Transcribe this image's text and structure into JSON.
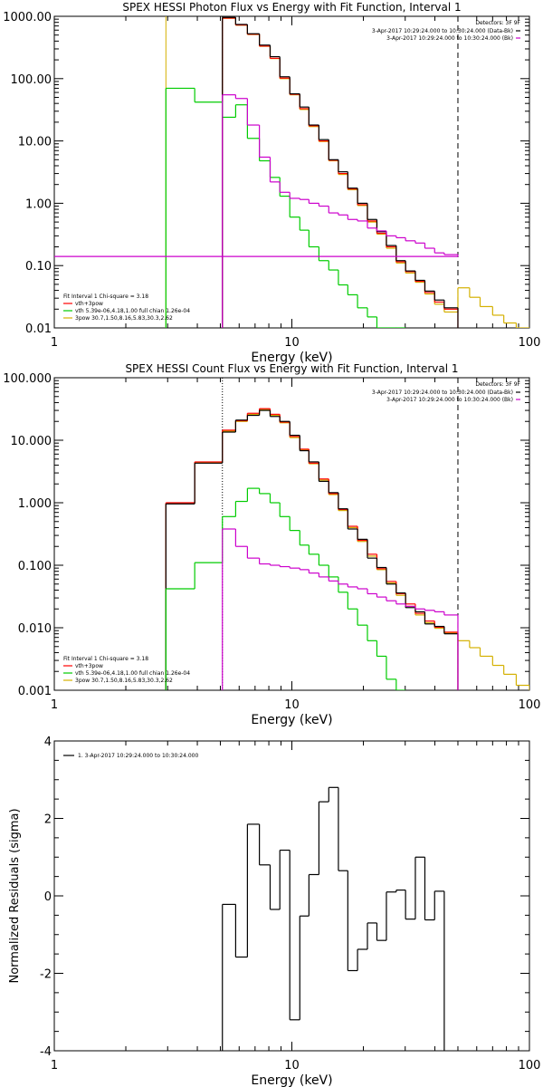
{
  "chart_data": [
    {
      "type": "line",
      "title": "SPEX HESSI Photon Flux vs Energy with Fit Function, Interval 1",
      "xlabel": "Energy (keV)",
      "ylabel": "",
      "x_scale": "log",
      "y_scale": "log",
      "xlim": [
        1,
        100
      ],
      "ylim": [
        0.01,
        1000
      ],
      "x_ticks": [
        {
          "value": 1,
          "label": "1"
        },
        {
          "value": 10,
          "label": "10"
        },
        {
          "value": 100,
          "label": "100"
        }
      ],
      "y_ticks": [
        {
          "value": 0.01,
          "label": "0.01"
        },
        {
          "value": 0.1,
          "label": "0.10"
        },
        {
          "value": 1,
          "label": "1.00"
        },
        {
          "value": 10,
          "label": "10.00"
        },
        {
          "value": 100,
          "label": "100.00"
        },
        {
          "value": 1000,
          "label": "1000.00"
        }
      ],
      "vlines": [
        {
          "x": 2.95,
          "color": "#d4b000",
          "style": "solid"
        },
        {
          "x": 5.1,
          "color": "#000000",
          "style": "dotted"
        },
        {
          "x": 50,
          "color": "#000000",
          "style": "dashed"
        }
      ],
      "legend_topright": {
        "detectors": "Detectors: 3F 9F",
        "entries": [
          {
            "text": "3-Apr-2017 10:29:24.000 to 10:30:24.000 (Data-Bk)",
            "color": "#000000"
          },
          {
            "text": "3-Apr-2017 10:29:24.000 to 10:30:24.000 (Bk)",
            "color": "#cc00cc"
          }
        ]
      },
      "legend_bottomleft": {
        "header": "Fit Interval 1   Chi-square = 3.18",
        "entries": [
          {
            "text": "vth+3pow",
            "color": "#ff0000"
          },
          {
            "text": "vth 5.39e-06,4.18,1.00  full chian 1.26e-04",
            "color": "#00cc00"
          },
          {
            "text": "3pow 30.7,1.50,8.16,5.83,30.3,2.62",
            "color": "#d4b000"
          }
        ]
      },
      "series": [
        {
          "color": "#d4b000",
          "edges": [
            2.95,
            3.9,
            5.1,
            5.8,
            6.5,
            7.3,
            8.1,
            8.9,
            9.8,
            10.8,
            11.8,
            13,
            14.3,
            15.7,
            17.2,
            18.9,
            20.8,
            22.8,
            25,
            27.5,
            30.1,
            33.1,
            36.3,
            39.9,
            43.8,
            50,
            56,
            62,
            70,
            78,
            88,
            100
          ],
          "values": [
            null,
            null,
            930,
            720,
            510,
            330,
            210,
            100,
            55,
            32,
            17,
            9.8,
            4.8,
            2.9,
            1.65,
            0.92,
            0.5,
            0.32,
            0.19,
            0.11,
            0.076,
            0.054,
            0.035,
            0.024,
            0.018,
            0.044,
            0.031,
            0.022,
            0.016,
            0.012,
            0.01
          ]
        },
        {
          "color": "#ff0000",
          "edges": [
            5.1,
            5.8,
            6.5,
            7.3,
            8.1,
            8.9,
            9.8,
            10.8,
            11.8,
            13,
            14.3,
            15.7,
            17.2,
            18.9,
            20.8,
            22.8,
            25,
            27.5,
            30.1,
            33.1,
            36.3,
            39.9,
            43.8,
            50
          ],
          "values": [
            935,
            725,
            515,
            333,
            212,
            102,
            56,
            33,
            17.5,
            10,
            4.9,
            3,
            1.7,
            0.95,
            0.52,
            0.33,
            0.2,
            0.115,
            0.08,
            0.056,
            0.037,
            0.026,
            0.02
          ]
        },
        {
          "color": "#000000",
          "edges": [
            5.1,
            5.8,
            6.5,
            7.3,
            8.1,
            8.9,
            9.8,
            10.8,
            11.8,
            13,
            14.3,
            15.7,
            17.2,
            18.9,
            20.8,
            22.8,
            25,
            27.5,
            30.1,
            33.1,
            36.3,
            39.9,
            43.8,
            50
          ],
          "values": [
            960,
            740,
            525,
            345,
            225,
            107,
            57,
            35,
            18,
            10.5,
            5,
            3.2,
            1.75,
            1,
            0.55,
            0.35,
            0.21,
            0.12,
            0.082,
            0.058,
            0.039,
            0.028,
            0.021
          ]
        },
        {
          "color": "#00cc00",
          "edges": [
            2.95,
            3.9,
            5.1,
            5.8,
            6.5,
            7.3,
            8.1,
            8.9,
            9.8,
            10.8,
            11.8,
            13,
            14.3,
            15.7,
            17.2,
            18.9,
            20.8,
            22.8,
            25,
            27.5,
            30.1
          ],
          "values": [
            70,
            42,
            24,
            38,
            11,
            4.8,
            2.6,
            1.3,
            0.6,
            0.37,
            0.2,
            0.12,
            0.085,
            0.049,
            0.034,
            0.021,
            0.015,
            0.01,
            0.01,
            0.01
          ]
        },
        {
          "color": "#cc00cc",
          "edges": [
            5.1,
            5.8,
            6.5,
            7.3,
            8.1,
            8.9,
            9.8,
            10.8,
            11.8,
            13,
            14.3,
            15.7,
            17.2,
            18.9,
            20.8,
            22.8,
            25,
            27.5,
            30.1,
            33.1,
            36.3,
            39.9,
            43.8,
            50
          ],
          "values": [
            55,
            48,
            18,
            5.5,
            2.2,
            1.5,
            1.2,
            1.15,
            1.0,
            0.9,
            0.7,
            0.65,
            0.55,
            0.52,
            0.4,
            0.36,
            0.3,
            0.28,
            0.25,
            0.23,
            0.19,
            0.16,
            0.15,
            0.14
          ]
        }
      ]
    },
    {
      "type": "line",
      "title": "SPEX HESSI Count Flux vs Energy with Fit Function, Interval 1",
      "xlabel": "Energy (keV)",
      "ylabel": "",
      "x_scale": "log",
      "y_scale": "log",
      "xlim": [
        1,
        100
      ],
      "ylim": [
        0.001,
        100
      ],
      "x_ticks": [
        {
          "value": 1,
          "label": "1"
        },
        {
          "value": 10,
          "label": "10"
        },
        {
          "value": 100,
          "label": "100"
        }
      ],
      "y_ticks": [
        {
          "value": 0.001,
          "label": "0.001"
        },
        {
          "value": 0.01,
          "label": "0.010"
        },
        {
          "value": 0.1,
          "label": "0.100"
        },
        {
          "value": 1,
          "label": "1.000"
        },
        {
          "value": 10,
          "label": "10.000"
        },
        {
          "value": 100,
          "label": "100.000"
        }
      ],
      "vlines": [
        {
          "x": 5.1,
          "color": "#000000",
          "style": "dotted"
        },
        {
          "x": 50,
          "color": "#000000",
          "style": "dashed"
        }
      ],
      "legend_topright": {
        "detectors": "Detectors: 3F 9F",
        "entries": [
          {
            "text": "3-Apr-2017 10:29:24.000 to 10:30:24.000 (Data-Bk)",
            "color": "#000000"
          },
          {
            "text": "3-Apr-2017 10:29:24.000 to 10:30:24.000 (Bk)",
            "color": "#cc00cc"
          }
        ]
      },
      "legend_bottomleft": {
        "header": "Fit Interval 1   Chi-square = 3.18",
        "entries": [
          {
            "text": "vth+3pow",
            "color": "#ff0000"
          },
          {
            "text": "vth 5.39e-06,4.18,1.00  full chian 1.26e-04",
            "color": "#00cc00"
          },
          {
            "text": "3pow 30.7,1.50,8.16,5.83,30.3,2.62",
            "color": "#d4b000"
          }
        ]
      },
      "series": [
        {
          "color": "#d4b000",
          "edges": [
            2.95,
            3.9,
            5.1,
            5.8,
            6.5,
            7.3,
            8.1,
            8.9,
            9.8,
            10.8,
            11.8,
            13,
            14.3,
            15.7,
            17.2,
            18.9,
            20.8,
            22.8,
            25,
            27.5,
            30.1,
            33.1,
            36.3,
            39.9,
            43.8,
            50,
            56,
            62,
            70,
            78,
            88,
            100
          ],
          "values": [
            0.98,
            4.4,
            14,
            20,
            26,
            31,
            25,
            19,
            11,
            7,
            4.2,
            2.3,
            1.35,
            0.75,
            0.4,
            0.24,
            0.14,
            0.085,
            0.052,
            0.033,
            0.022,
            0.016,
            0.012,
            0.0098,
            0.0082,
            0.0062,
            0.0048,
            0.0035,
            0.0025,
            0.0018,
            0.0012
          ]
        },
        {
          "color": "#ff0000",
          "edges": [
            2.95,
            3.9,
            5.1,
            5.8,
            6.5,
            7.3,
            8.1,
            8.9,
            9.8,
            10.8,
            11.8,
            13,
            14.3,
            15.7,
            17.2,
            18.9,
            20.8,
            22.8,
            25,
            27.5,
            30.1,
            33.1,
            36.3,
            39.9,
            43.8,
            50
          ],
          "values": [
            1.0,
            4.5,
            14.5,
            20.5,
            27,
            32,
            26,
            19.5,
            11.5,
            7.2,
            4.3,
            2.4,
            1.4,
            0.78,
            0.42,
            0.25,
            0.15,
            0.088,
            0.055,
            0.035,
            0.024,
            0.017,
            0.0128,
            0.0102,
            0.0085
          ]
        },
        {
          "color": "#000000",
          "edges": [
            2.95,
            3.9,
            5.1,
            5.8,
            6.5,
            7.3,
            8.1,
            8.9,
            9.8,
            10.8,
            11.8,
            13,
            14.3,
            15.7,
            17.2,
            18.9,
            20.8,
            22.8,
            25,
            27.5,
            30.1,
            33.1,
            36.3,
            39.9,
            43.8,
            50
          ],
          "values": [
            0.96,
            4.3,
            13.5,
            21,
            25,
            30,
            24,
            20,
            12,
            6.8,
            4.5,
            2.2,
            1.45,
            0.8,
            0.38,
            0.26,
            0.13,
            0.092,
            0.05,
            0.036,
            0.021,
            0.018,
            0.0115,
            0.0105,
            0.008
          ]
        },
        {
          "color": "#00cc00",
          "edges": [
            2.95,
            3.9,
            5.1,
            5.8,
            6.5,
            7.3,
            8.1,
            8.9,
            9.8,
            10.8,
            11.8,
            13,
            14.3,
            15.7,
            17.2,
            18.9,
            20.8,
            22.8,
            25,
            27.5,
            30.1
          ],
          "values": [
            0.042,
            0.11,
            0.6,
            1.05,
            1.7,
            1.4,
            1.0,
            0.6,
            0.36,
            0.21,
            0.15,
            0.1,
            0.065,
            0.037,
            0.02,
            0.011,
            0.0062,
            0.0035,
            0.0015,
            0.001
          ]
        },
        {
          "color": "#cc00cc",
          "edges": [
            5.1,
            5.8,
            6.5,
            7.3,
            8.1,
            8.9,
            9.8,
            10.8,
            11.8,
            13,
            14.3,
            15.7,
            17.2,
            18.9,
            20.8,
            22.8,
            25,
            27.5,
            30.1,
            33.1,
            36.3,
            39.9,
            43.8,
            50
          ],
          "values": [
            0.38,
            0.2,
            0.13,
            0.105,
            0.1,
            0.095,
            0.09,
            0.085,
            0.075,
            0.065,
            0.056,
            0.05,
            0.045,
            0.042,
            0.035,
            0.031,
            0.027,
            0.024,
            0.022,
            0.02,
            0.019,
            0.018,
            0.016
          ]
        }
      ]
    },
    {
      "type": "line",
      "title": "",
      "xlabel": "Energy (keV)",
      "ylabel": "Normalized Residuals (sigma)",
      "x_scale": "log",
      "y_scale": "linear",
      "xlim": [
        1,
        100
      ],
      "ylim": [
        -4,
        4
      ],
      "x_ticks": [
        {
          "value": 1,
          "label": "1"
        },
        {
          "value": 10,
          "label": "10"
        },
        {
          "value": 100,
          "label": "100"
        }
      ],
      "y_ticks": [
        {
          "value": -4,
          "label": "-4"
        },
        {
          "value": -2,
          "label": "-2"
        },
        {
          "value": 0,
          "label": "0"
        },
        {
          "value": 2,
          "label": "2"
        },
        {
          "value": 4,
          "label": "4"
        }
      ],
      "legend_topleft": {
        "entries": [
          {
            "text": "1.  3-Apr-2017 10:29:24.000 to 10:30:24.000",
            "color": "#000000"
          }
        ]
      },
      "series": [
        {
          "color": "#000000",
          "edges": [
            5.1,
            5.8,
            6.5,
            7.3,
            8.1,
            8.9,
            9.8,
            10.8,
            11.8,
            13,
            14.3,
            15.7,
            17.2,
            18.9,
            20.8,
            22.8,
            25,
            27.5,
            30.1,
            33.1,
            36.3,
            39.9,
            43.8,
            50
          ],
          "values": [
            -0.22,
            -1.58,
            1.85,
            0.8,
            -0.35,
            1.18,
            -3.2,
            -0.52,
            0.55,
            2.43,
            2.8,
            0.65,
            -1.93,
            -1.38,
            -0.7,
            -1.15,
            0.1,
            0.15,
            -0.6,
            1.0,
            -0.62,
            0.12,
            null
          ],
          "drop_to_bottom_at_edges": true
        }
      ]
    }
  ]
}
